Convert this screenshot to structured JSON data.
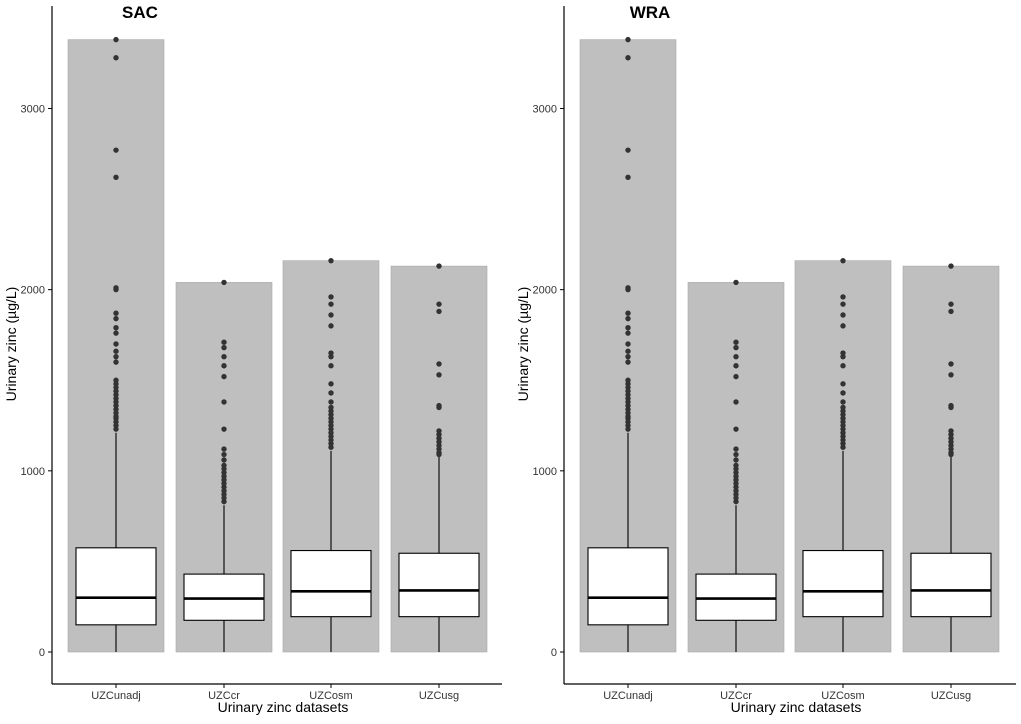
{
  "colors": {
    "bar_fill": "#bfbfbf",
    "bar_stroke": "#a8a8a8",
    "box_fill": "#ffffff",
    "box_stroke": "#000000",
    "outlier": "#333333",
    "axis": "#000000"
  },
  "chart_data": [
    {
      "type": "boxplot",
      "title": "SAC",
      "xlabel": "Urinary zinc datasets",
      "ylabel": "Urinary zinc (µg/L)",
      "ylim": [
        0,
        3400
      ],
      "y_ticks": [
        0,
        1000,
        2000,
        3000
      ],
      "y_tick_labels": [
        "0",
        "1000",
        "2000",
        "3000"
      ],
      "categories": [
        "UZCunadj",
        "UZCcr",
        "UZCosm",
        "UZCusg"
      ],
      "bar_max": [
        3380,
        2040,
        2160,
        2130
      ],
      "boxes": [
        {
          "q1": 150,
          "median": 300,
          "q3": 575,
          "whisker_low": 0,
          "whisker_high": 1210
        },
        {
          "q1": 175,
          "median": 295,
          "q3": 430,
          "whisker_low": 0,
          "whisker_high": 810
        },
        {
          "q1": 195,
          "median": 335,
          "q3": 560,
          "whisker_low": 0,
          "whisker_high": 1110
        },
        {
          "q1": 195,
          "median": 340,
          "q3": 545,
          "whisker_low": 0,
          "whisker_high": 1080
        }
      ],
      "outliers": [
        [
          3380,
          3280,
          2770,
          2620,
          2010,
          2000,
          1870,
          1840,
          1790,
          1760,
          1700,
          1660,
          1630,
          1600,
          1500,
          1480,
          1460,
          1440,
          1420,
          1400,
          1380,
          1360,
          1340,
          1320,
          1300,
          1290,
          1270,
          1250,
          1230
        ],
        [
          2040,
          1710,
          1680,
          1630,
          1580,
          1520,
          1380,
          1230,
          1120,
          1090,
          1060,
          1030,
          1010,
          990,
          970,
          950,
          930,
          910,
          890,
          870,
          850,
          830
        ],
        [
          2160,
          1960,
          1920,
          1860,
          1800,
          1650,
          1630,
          1580,
          1480,
          1430,
          1380,
          1350,
          1330,
          1310,
          1290,
          1270,
          1250,
          1230,
          1210,
          1190,
          1170,
          1150,
          1130
        ],
        [
          2130,
          1920,
          1880,
          1590,
          1530,
          1360,
          1350,
          1220,
          1200,
          1180,
          1160,
          1140,
          1120,
          1100,
          1090
        ]
      ]
    },
    {
      "type": "boxplot",
      "title": "WRA",
      "xlabel": "Urinary zinc datasets",
      "ylabel": "Urinary zinc (µg/L)",
      "ylim": [
        0,
        3400
      ],
      "y_ticks": [
        0,
        1000,
        2000,
        3000
      ],
      "y_tick_labels": [
        "0",
        "1000",
        "2000",
        "3000"
      ],
      "categories": [
        "UZCunadj",
        "UZCcr",
        "UZCosm",
        "UZCusg"
      ],
      "bar_max": [
        3380,
        2040,
        2160,
        2130
      ],
      "boxes": [
        {
          "q1": 150,
          "median": 300,
          "q3": 575,
          "whisker_low": 0,
          "whisker_high": 1210
        },
        {
          "q1": 175,
          "median": 295,
          "q3": 430,
          "whisker_low": 0,
          "whisker_high": 810
        },
        {
          "q1": 195,
          "median": 335,
          "q3": 560,
          "whisker_low": 0,
          "whisker_high": 1110
        },
        {
          "q1": 195,
          "median": 340,
          "q3": 545,
          "whisker_low": 0,
          "whisker_high": 1080
        }
      ],
      "outliers": [
        [
          3380,
          3280,
          2770,
          2620,
          2010,
          2000,
          1870,
          1840,
          1790,
          1760,
          1700,
          1660,
          1630,
          1600,
          1500,
          1480,
          1460,
          1440,
          1420,
          1400,
          1380,
          1360,
          1340,
          1320,
          1300,
          1290,
          1270,
          1250,
          1230
        ],
        [
          2040,
          1710,
          1680,
          1630,
          1580,
          1520,
          1380,
          1230,
          1120,
          1090,
          1060,
          1030,
          1010,
          990,
          970,
          950,
          930,
          910,
          890,
          870,
          850,
          830
        ],
        [
          2160,
          1960,
          1920,
          1860,
          1800,
          1650,
          1630,
          1580,
          1480,
          1430,
          1380,
          1350,
          1330,
          1310,
          1290,
          1270,
          1250,
          1230,
          1210,
          1190,
          1170,
          1150,
          1130
        ],
        [
          2130,
          1920,
          1880,
          1590,
          1530,
          1360,
          1350,
          1220,
          1200,
          1180,
          1160,
          1140,
          1120,
          1100,
          1090
        ]
      ]
    }
  ]
}
